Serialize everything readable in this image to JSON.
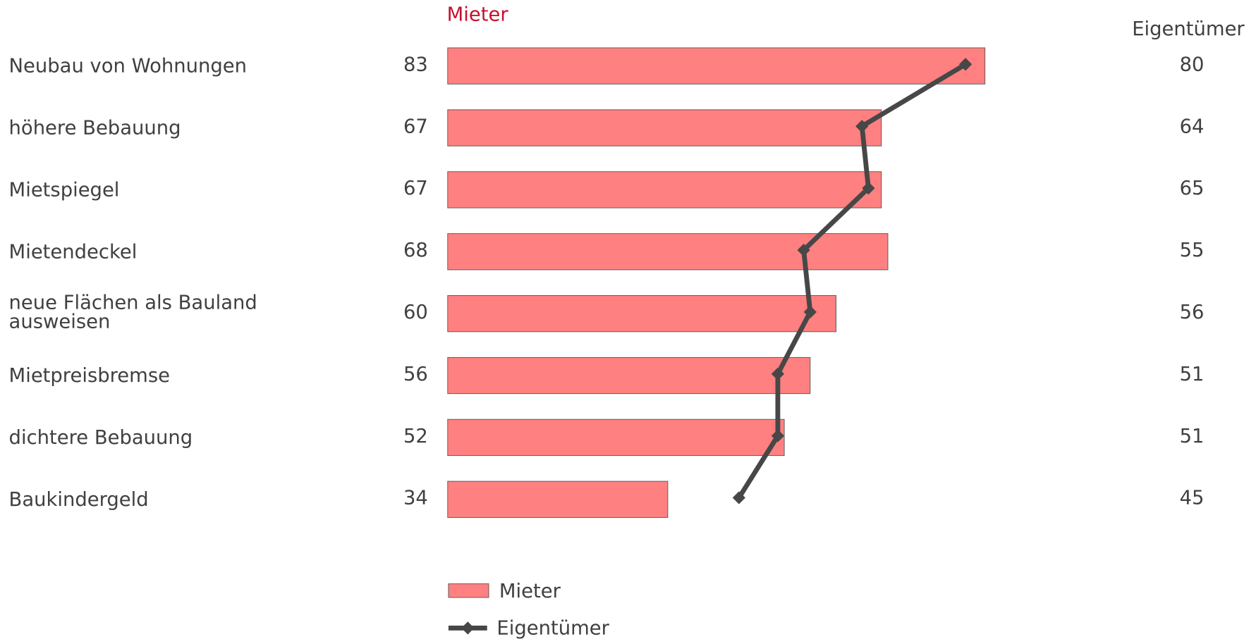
{
  "chart_data": {
    "type": "bar",
    "categories": [
      "Neubau von Wohnungen",
      "höhere Bebauung",
      "Mietspiegel",
      "Mietendeckel",
      "neue Flächen als Bauland ausweisen",
      "Mietpreisbremse",
      "dichtere Bebauung",
      "Baukindergeld"
    ],
    "series": [
      {
        "name": "Mieter",
        "type": "bar",
        "color": "#ff8080",
        "header_color": "#c8102e",
        "values": [
          83,
          67,
          67,
          68,
          60,
          56,
          52,
          34
        ]
      },
      {
        "name": "Eigentümer",
        "type": "line",
        "color": "#474747",
        "values": [
          80,
          64,
          65,
          55,
          56,
          51,
          51,
          45
        ]
      }
    ],
    "legend": "bottom"
  }
}
